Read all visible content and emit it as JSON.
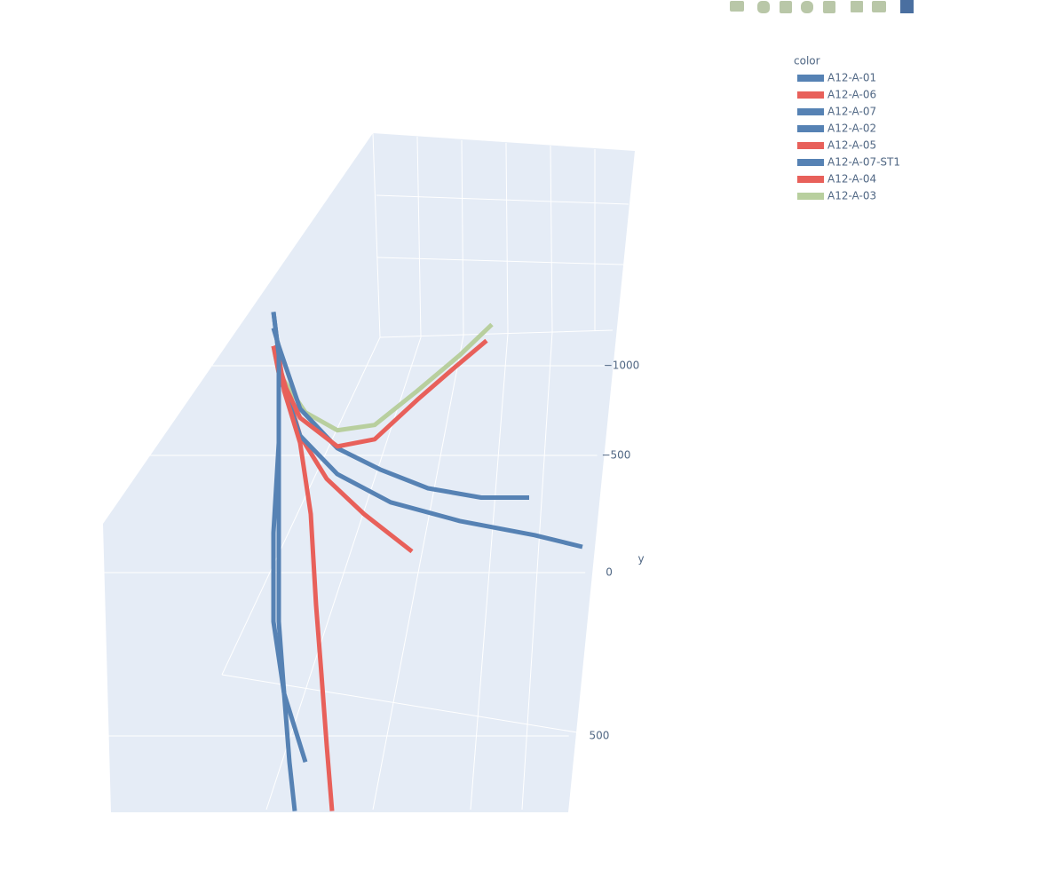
{
  "chart_data": {
    "type": "line3d",
    "legend_title": "color",
    "y_axis_label": "y",
    "xlim": [
      0,
      1000
    ],
    "ylim": [
      -1300,
      750
    ],
    "yticks": [
      {
        "value": -1000,
        "label": "−1000"
      },
      {
        "value": -500,
        "label": "−500"
      },
      0,
      500
    ],
    "grid": true,
    "series": [
      {
        "name": "A12-A-01",
        "color": "#5682b4",
        "x": [
          320,
          330,
          330,
          320,
          320,
          340,
          350,
          360
        ],
        "values": [
          -1300,
          -1060,
          -570,
          -170,
          150,
          370,
          580,
          730
        ]
      },
      {
        "name": "A12-A-06",
        "color": "#e8605a",
        "x": [
          320,
          330,
          370,
          440,
          510,
          590,
          660,
          720
        ],
        "values": [
          -1110,
          -960,
          -710,
          -550,
          -590,
          -810,
          -990,
          -1140
        ]
      },
      {
        "name": "A12-A-07",
        "color": "#5682b4",
        "x": [
          320,
          330,
          330,
          330,
          340,
          380
        ],
        "values": [
          -1300,
          -1060,
          -570,
          150,
          370,
          580
        ]
      },
      {
        "name": "A12-A-02",
        "color": "#5682b4",
        "x": [
          320,
          330,
          370,
          440,
          520,
          610,
          710,
          800
        ],
        "values": [
          -1210,
          -1110,
          -760,
          -540,
          -440,
          -360,
          -320,
          -320
        ]
      },
      {
        "name": "A12-A-05",
        "color": "#e8605a",
        "x": [
          320,
          330,
          340,
          370,
          390,
          400,
          410,
          420,
          430
        ],
        "values": [
          -1110,
          -1060,
          -860,
          -570,
          -250,
          100,
          310,
          530,
          730
        ]
      },
      {
        "name": "A12-A-07-ST1",
        "color": "#5682b4",
        "x": [
          330,
          330,
          370,
          440,
          540,
          670,
          810,
          900
        ],
        "values": [
          -1110,
          -960,
          -610,
          -420,
          -300,
          -220,
          -160,
          -110
        ]
      },
      {
        "name": "A12-A-04",
        "color": "#e8605a",
        "x": [
          320,
          340,
          370,
          420,
          490,
          580
        ],
        "values": [
          -1110,
          -910,
          -610,
          -400,
          -250,
          -90
        ]
      },
      {
        "name": "A12-A-03",
        "color": "#b8cf9e",
        "x": [
          320,
          330,
          380,
          440,
          510,
          590,
          670,
          730
        ],
        "values": [
          -1110,
          -960,
          -740,
          -640,
          -670,
          -860,
          -1060,
          -1230
        ]
      }
    ]
  }
}
